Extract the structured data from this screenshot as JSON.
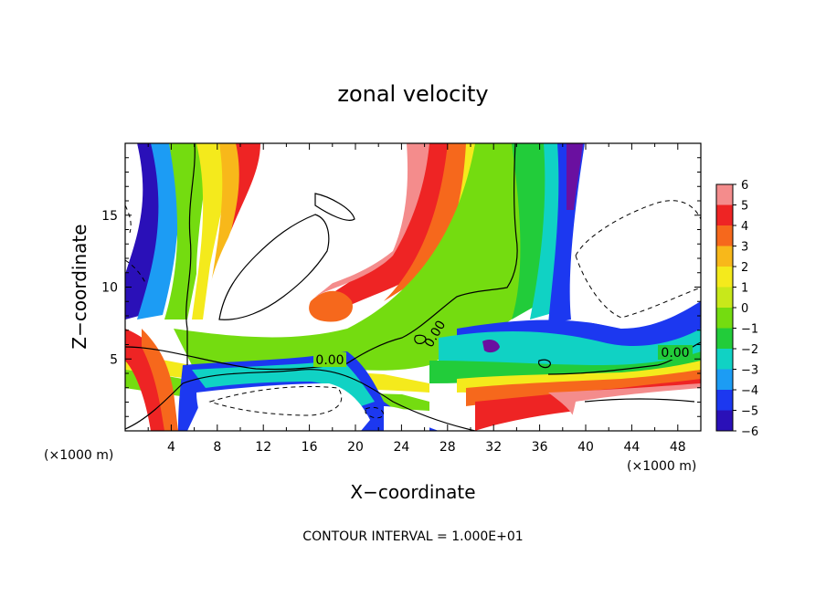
{
  "chart_data": {
    "type": "heatmap",
    "title": "zonal velocity",
    "xlabel": "X−coordinate",
    "ylabel": "Z−coordinate",
    "x_unit_label": "(×1000 m)",
    "x_unit_label_right": "(×1000 m)",
    "xlim": [
      0,
      50
    ],
    "ylim": [
      0,
      20
    ],
    "x_ticks": [
      4,
      8,
      12,
      16,
      20,
      24,
      28,
      32,
      36,
      40,
      44,
      48
    ],
    "y_ticks": [
      5,
      10,
      15
    ],
    "colorbar": {
      "levels": [
        6,
        5,
        4,
        3,
        2,
        1,
        0,
        -1,
        -2,
        -3,
        -4,
        -5,
        -6
      ],
      "labels": [
        "6",
        "5",
        "4",
        "3",
        "2",
        "1",
        "0",
        "−1",
        "−2",
        "−3",
        "−4",
        "−5",
        "−6"
      ],
      "colors": [
        "#f48c8c",
        "#ee2424",
        "#f6681c",
        "#f8b81a",
        "#f4ea1c",
        "#c8e81a",
        "#74dc10",
        "#22cc3a",
        "#10d2c4",
        "#1c9cf4",
        "#1c38f0",
        "#2a10b8",
        "#6a10a0"
      ]
    },
    "contour_labels": [
      "0.00",
      "0.00",
      "0.00"
    ],
    "footer": "CONTOUR INTERVAL = 1.000E+01"
  }
}
